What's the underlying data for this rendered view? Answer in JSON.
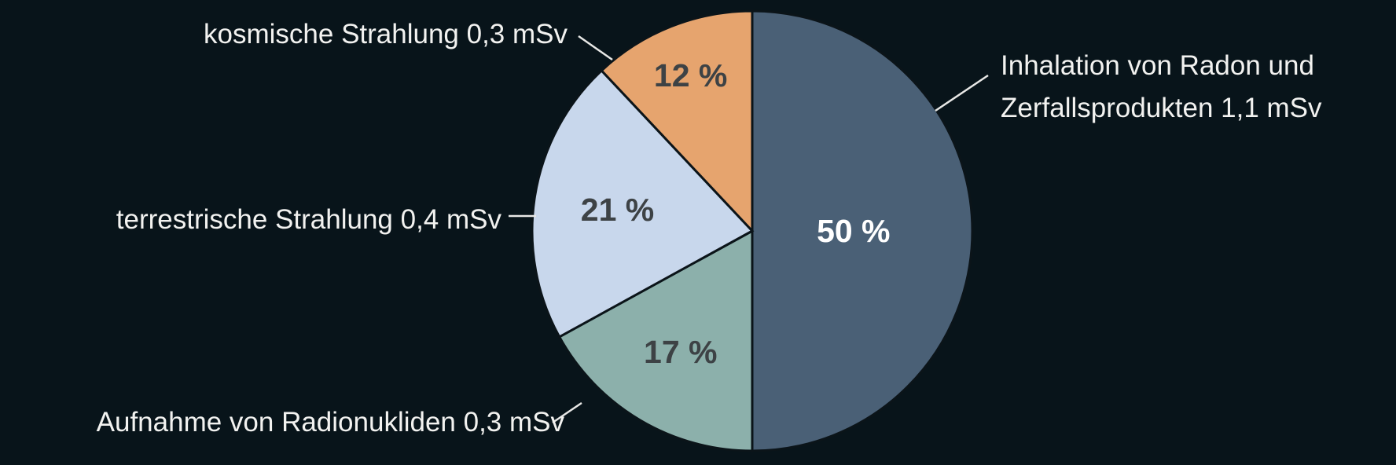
{
  "chart_data": {
    "type": "pie",
    "start": "12 o'clock",
    "direction": "clockwise",
    "slices": [
      {
        "label_lines": [
          "Inhalation von Radon und",
          "Zerfallsprodukten 1,1 mSv"
        ],
        "value": 50,
        "percent_label": "50 %",
        "color": "#4a6076",
        "text_color": "#ffffff"
      },
      {
        "label_lines": [
          "Aufnahme von Radionukliden 0,3 mSv"
        ],
        "value": 17,
        "percent_label": "17 %",
        "color": "#8cb0ab",
        "text_color": "#3d4245"
      },
      {
        "label_lines": [
          "terrestrische Strahlung 0,4 mSv"
        ],
        "value": 21,
        "percent_label": "21 %",
        "color": "#c8d7ec",
        "text_color": "#3d4245"
      },
      {
        "label_lines": [
          "kosmische Strahlung 0,3 mSv"
        ],
        "value": 12,
        "percent_label": "12 %",
        "color": "#e6a46e",
        "text_color": "#3d4245"
      }
    ]
  },
  "colors": {
    "background": "#08141a",
    "label_text": "#f2f2f0",
    "leader_line": "#e8e8e6",
    "slice_border": "#0b1419"
  }
}
